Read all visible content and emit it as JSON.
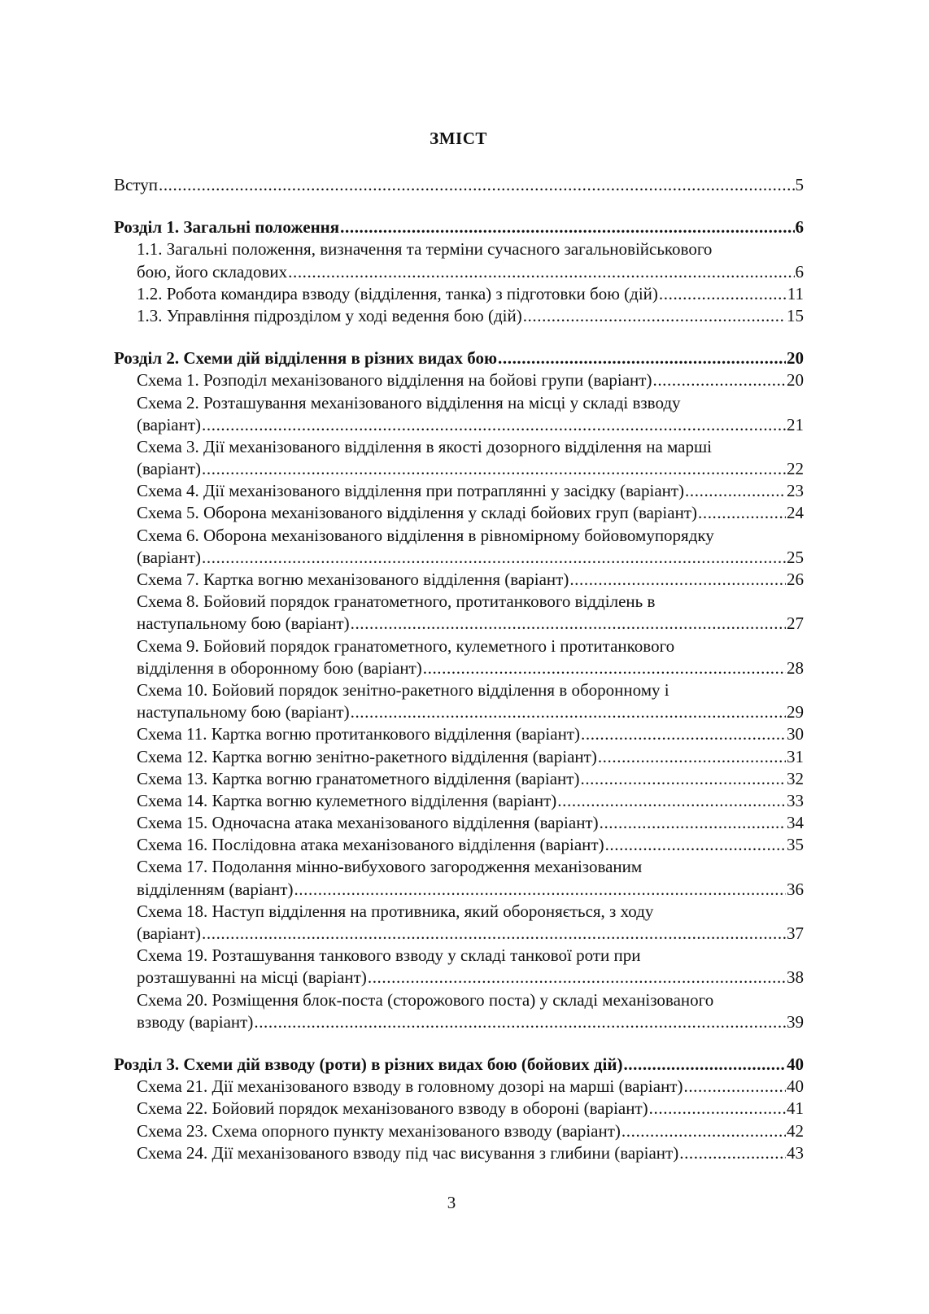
{
  "title": "ЗМІСТ",
  "page_number": "3",
  "entries": [
    {
      "level": 0,
      "bold": false,
      "lines": [
        "Вступ"
      ],
      "page": "5",
      "gap_after": true
    },
    {
      "level": 0,
      "bold": true,
      "lines": [
        "Розділ 1. Загальні положення"
      ],
      "page": "6"
    },
    {
      "level": 1,
      "lines": [
        "1.1. Загальні положення, визначення та терміни сучасного загальновійськового",
        "бою, його складових "
      ],
      "page": "6"
    },
    {
      "level": 1,
      "lines": [
        "1.2. Робота командира взводу (відділення, танка) з підготовки бою (дій)"
      ],
      "page": "11"
    },
    {
      "level": 1,
      "lines": [
        "1.3. Управління підрозділом у ході ведення бою (дій)"
      ],
      "page": " 15",
      "gap_after": true
    },
    {
      "level": 0,
      "bold": true,
      "lines": [
        "Розділ 2. Схеми дій відділення в різних видах бою "
      ],
      "page": "20"
    },
    {
      "level": 1,
      "lines": [
        "Схема 1. Розподіл механізованого відділення на бойові групи (варіант) "
      ],
      "page": "20"
    },
    {
      "level": 1,
      "lines": [
        "Схема 2. Розташування механізованого відділення на місці у складі взводу",
        "(варіант) "
      ],
      "page": "21"
    },
    {
      "level": 1,
      "lines": [
        "Схема 3. Дії механізованого відділення в якості дозорного відділення на марші",
        "(варіант) "
      ],
      "page": "22"
    },
    {
      "level": 1,
      "lines": [
        "Схема 4. Дії механізованого відділення при потраплянні у засідку (варіант)"
      ],
      "page": "23"
    },
    {
      "level": 1,
      "lines": [
        "Схема 5. Оборона механізованого відділення у складі бойових груп (варіант)"
      ],
      "page": "24"
    },
    {
      "level": 1,
      "lines": [
        "Схема 6. Оборона механізованого відділення в рівномірному бойовомупорядку",
        "(варіант) "
      ],
      "page": "25"
    },
    {
      "level": 1,
      "lines": [
        "Схема 7. Картка вогню механізованого відділення (варіант)"
      ],
      "page": "26"
    },
    {
      "level": 1,
      "lines": [
        "Схема 8. Бойовий порядок гранатометного, протитанкового відділень в",
        "наступальному бою (варіант)"
      ],
      "page": "27"
    },
    {
      "level": 1,
      "lines": [
        "Схема 9. Бойовий порядок гранатометного, кулеметного і протитанкового",
        "відділення в оборонному бою (варіант)"
      ],
      "page": "28"
    },
    {
      "level": 1,
      "lines": [
        "Схема 10. Бойовий порядок зенітно-ракетного відділення в оборонному і",
        "наступальному бою (варіант)"
      ],
      "page": "29"
    },
    {
      "level": 1,
      "lines": [
        "Схема 11. Картка вогню протитанкового відділення (варіант) "
      ],
      "page": "30"
    },
    {
      "level": 1,
      "lines": [
        "Схема 12. Картка вогню зенітно-ракетного відділення (варіант) "
      ],
      "page": "31"
    },
    {
      "level": 1,
      "lines": [
        "Схема 13. Картка вогню гранатометного відділення (варіант) "
      ],
      "page": "32"
    },
    {
      "level": 1,
      "lines": [
        "Схема 14. Картка вогню кулеметного відділення (варіант)"
      ],
      "page": "33"
    },
    {
      "level": 1,
      "lines": [
        "Схема 15. Одночасна атака механізованого відділення (варіант)"
      ],
      "page": "34"
    },
    {
      "level": 1,
      "lines": [
        "Схема 16. Послідовна атака механізованого відділення (варіант)"
      ],
      "page": "35"
    },
    {
      "level": 1,
      "lines": [
        "Схема 17. Подолання мінно-вибухового загородження механізованим",
        "відділенням (варіант) "
      ],
      "page": "36"
    },
    {
      "level": 1,
      "lines": [
        "Схема 18. Наступ відділення на противника, який обороняється, з ходу",
        "(варіант) "
      ],
      "page": "37"
    },
    {
      "level": 1,
      "lines": [
        "Схема 19. Розташування танкового взводу у складі танкової роти при",
        "розташуванні на місці (варіант)"
      ],
      "page": "38"
    },
    {
      "level": 1,
      "lines": [
        "Схема 20. Розміщення блок-поста (сторожового поста) у складі механізованого",
        "взводу (варіант) "
      ],
      "page": "39",
      "gap_after": true
    },
    {
      "level": 0,
      "bold": true,
      "lines": [
        "Розділ 3. Схеми дій взводу (роти) в різних видах бою (бойових дій)  "
      ],
      "page": "40"
    },
    {
      "level": 1,
      "lines": [
        "Схема 21. Дії механізованого взводу в головному дозорі на марші (варіант)"
      ],
      "page": "40"
    },
    {
      "level": 1,
      "lines": [
        "Схема 22. Бойовий порядок механізованого взводу в обороні (варіант) "
      ],
      "page": "41"
    },
    {
      "level": 1,
      "lines": [
        "Схема 23. Схема опорного пункту механізованого взводу (варіант)"
      ],
      "page": "42"
    },
    {
      "level": 1,
      "lines": [
        "Схема 24. Дії механізованого взводу під час висування з глибини (варіант)"
      ],
      "page": "43"
    }
  ]
}
